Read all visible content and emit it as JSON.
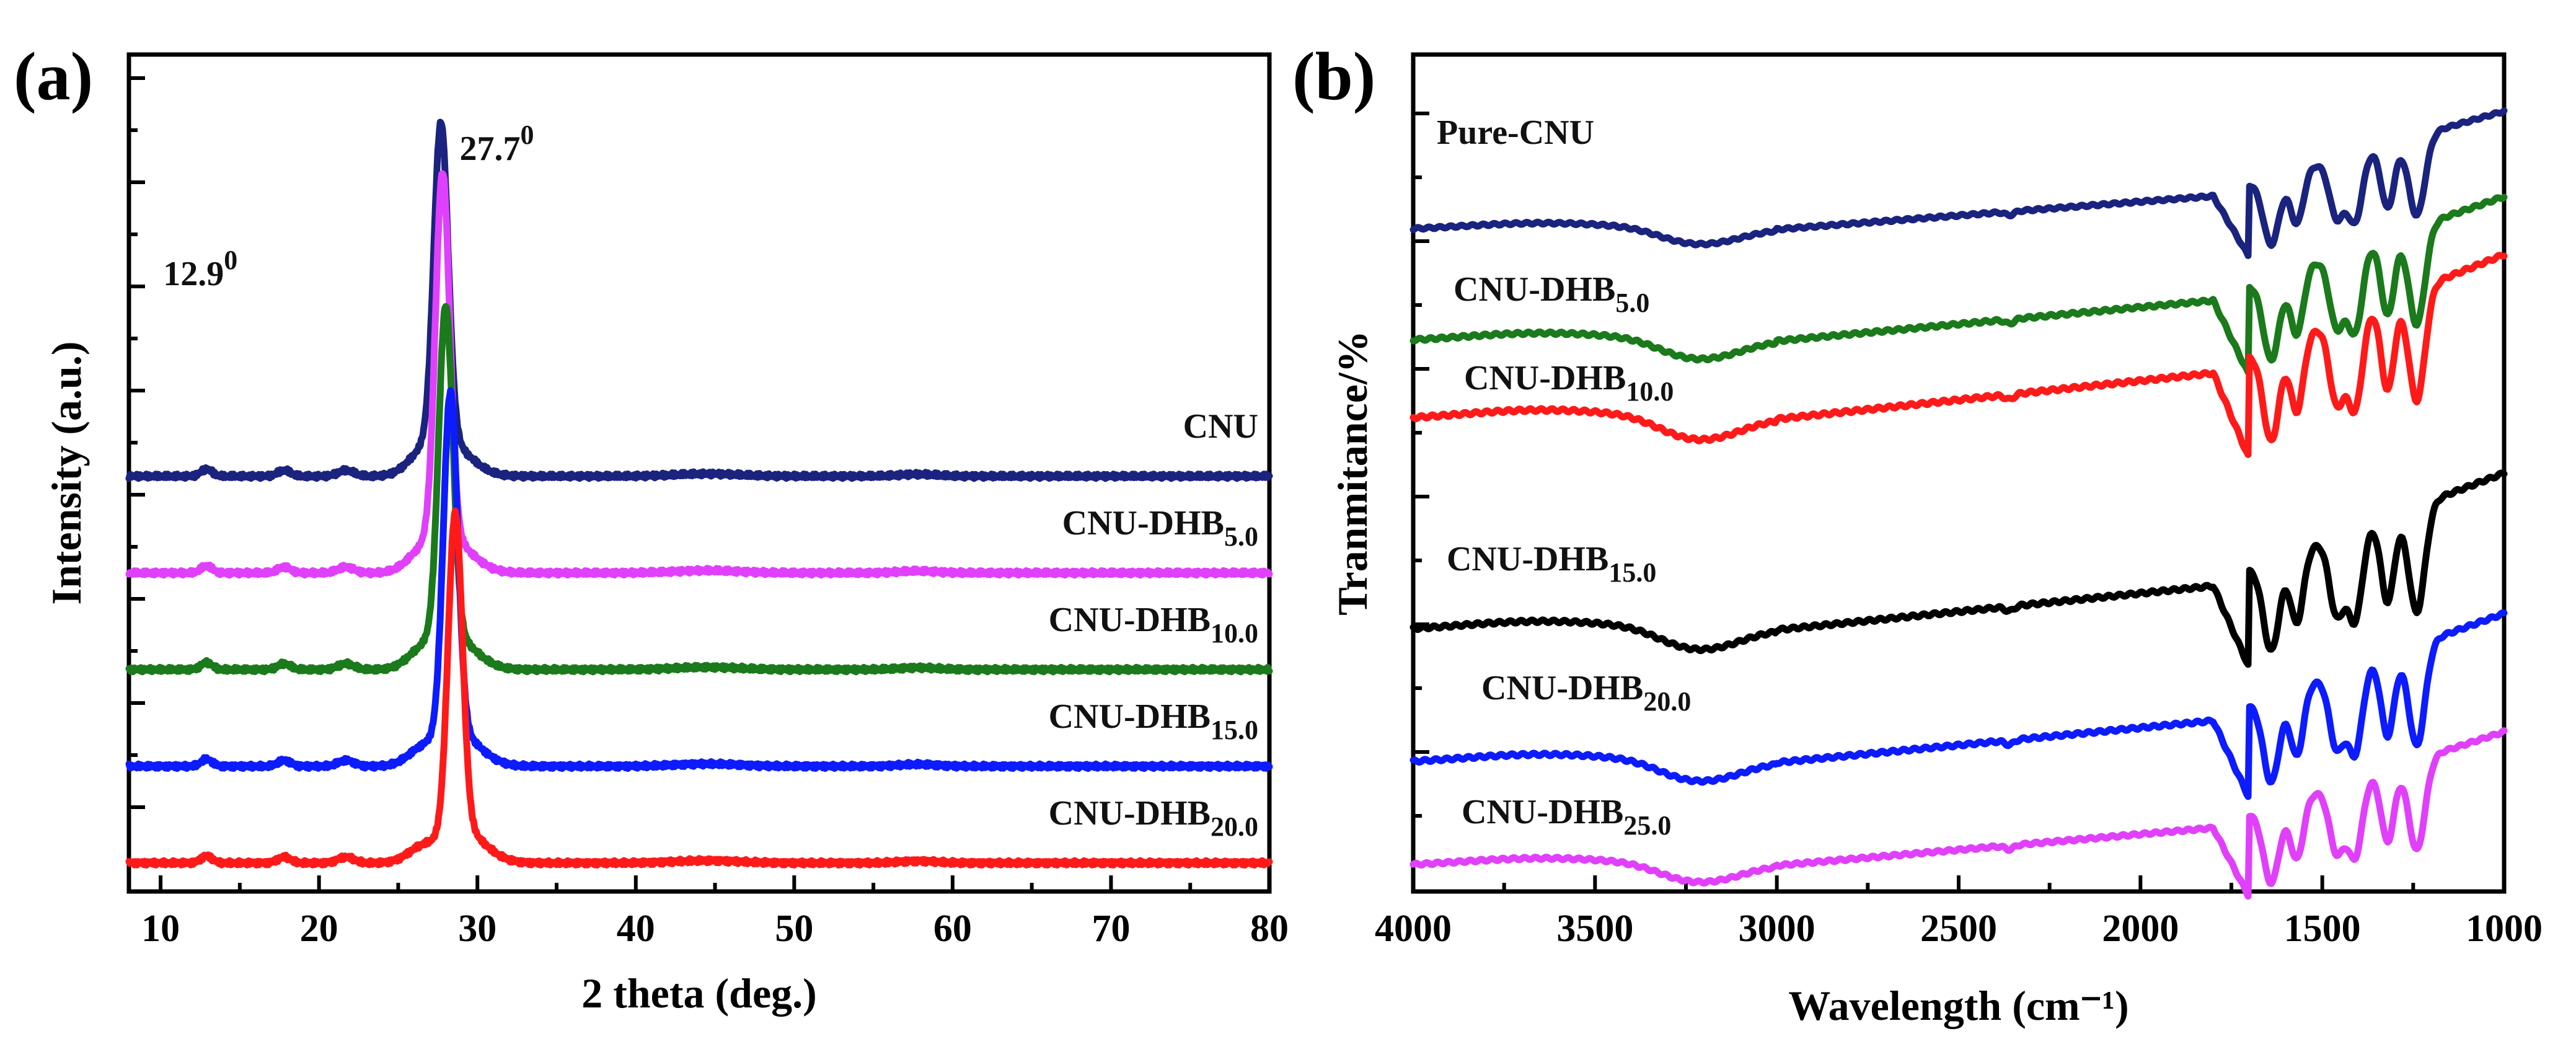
{
  "chart_data": [
    {
      "panel": "(a)",
      "type": "line",
      "title": "",
      "xlabel": "2 theta (deg.)",
      "ylabel": "Intensity (a.u.)",
      "xlim": [
        8,
        80
      ],
      "xticks": [
        10,
        20,
        30,
        40,
        50,
        60,
        70,
        80
      ],
      "y_ticks_labeled": false,
      "annotations": [
        {
          "label": "12.9",
          "superscript": "0",
          "x": 12.9
        },
        {
          "label": "27.7",
          "superscript": "0",
          "x": 27.7
        }
      ],
      "series": [
        {
          "name": "CNU",
          "base": "CNU",
          "subscript": "",
          "color": "#1a237e",
          "offset": 4,
          "peak_x": 27.7,
          "peak_height": 1.35
        },
        {
          "name": "CNU-DHB5.0",
          "base": "CNU-DHB",
          "subscript": "5.0",
          "color": "#e040fb",
          "offset": 3,
          "peak_x": 27.8,
          "peak_height": 1.55
        },
        {
          "name": "CNU-DHB10.0",
          "base": "CNU-DHB",
          "subscript": "10.0",
          "color": "#1b7a1b",
          "offset": 2,
          "peak_x": 28.0,
          "peak_height": 1.4
        },
        {
          "name": "CNU-DHB15.0",
          "base": "CNU-DHB",
          "subscript": "15.0",
          "color": "#0d1bff",
          "offset": 1,
          "peak_x": 28.3,
          "peak_height": 1.45
        },
        {
          "name": "CNU-DHB20.0",
          "base": "CNU-DHB",
          "subscript": "20.0",
          "color": "#ff1a1a",
          "offset": 0,
          "peak_x": 28.6,
          "peak_height": 1.35
        }
      ]
    },
    {
      "panel": "(b)",
      "type": "line",
      "title": "",
      "xlabel": "Wavelength (cm⁻¹)",
      "ylabel": "Tranmitance/%",
      "xlim": [
        4000,
        1000
      ],
      "xticks": [
        4000,
        3500,
        3000,
        2500,
        2000,
        1500,
        1000
      ],
      "y_ticks_labeled": false,
      "series": [
        {
          "name": "Pure-CNU",
          "base": "Pure-CNU",
          "subscript": "",
          "color": "#1a237e",
          "offset": 5
        },
        {
          "name": "CNU-DHB5.0",
          "base": "CNU-DHB",
          "subscript": "5.0",
          "color": "#1b7a1b",
          "offset": 4
        },
        {
          "name": "CNU-DHB10.0",
          "base": "CNU-DHB",
          "subscript": "10.0",
          "color": "#ff1a1a",
          "offset": 3
        },
        {
          "name": "CNU-DHB15.0",
          "base": "CNU-DHB",
          "subscript": "15.0",
          "color": "#000000",
          "offset": 2
        },
        {
          "name": "CNU-DHB20.0",
          "base": "CNU-DHB",
          "subscript": "20.0",
          "color": "#0d1bff",
          "offset": 1
        },
        {
          "name": "CNU-DHB25.0",
          "base": "CNU-DHB",
          "subscript": "25.0",
          "color": "#e040fb",
          "offset": 0
        }
      ]
    }
  ]
}
